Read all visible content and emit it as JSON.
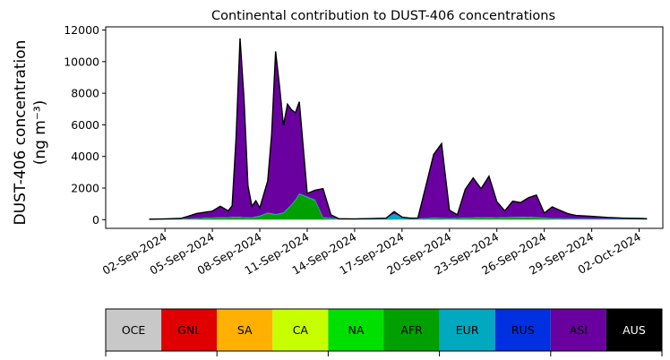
{
  "chart_data": {
    "type": "area",
    "title": "Continental contribution to DUST-406 concentrations",
    "ylabel_line1": "DUST-406 concentration",
    "ylabel_line2": "(ng m⁻³)",
    "ylim": [
      -550,
      12200
    ],
    "xlim": [
      "2024-08-29T06:00",
      "2024-10-03T12:00"
    ],
    "yticks": [
      0,
      2000,
      4000,
      6000,
      8000,
      10000,
      12000
    ],
    "xticks": [
      "2024-09-02",
      "2024-09-05",
      "2024-09-08",
      "2024-09-11",
      "2024-09-14",
      "2024-09-17",
      "2024-09-20",
      "2024-09-23",
      "2024-09-26",
      "2024-09-29",
      "2024-10-02"
    ],
    "xtick_labels": [
      "02-Sep-2024",
      "05-Sep-2024",
      "08-Sep-2024",
      "11-Sep-2024",
      "14-Sep-2024",
      "17-Sep-2024",
      "20-Sep-2024",
      "23-Sep-2024",
      "26-Sep-2024",
      "29-Sep-2024",
      "02-Oct-2024"
    ],
    "grid": false,
    "legend": {
      "placement": "bottom",
      "entries": [
        {
          "label": "OCE",
          "color": "#c8c8c8",
          "text_color": "#000000"
        },
        {
          "label": "GNL",
          "color": "#e00000",
          "text_color": "#000000"
        },
        {
          "label": "SA",
          "color": "#ffb000",
          "text_color": "#000000"
        },
        {
          "label": "CA",
          "color": "#c8ff00",
          "text_color": "#000000"
        },
        {
          "label": "NA",
          "color": "#00e000",
          "text_color": "#000000"
        },
        {
          "label": "AFR",
          "color": "#00a000",
          "text_color": "#000000"
        },
        {
          "label": "EUR",
          "color": "#00a8c0",
          "text_color": "#000000"
        },
        {
          "label": "RUS",
          "color": "#0030e0",
          "text_color": "#000000"
        },
        {
          "label": "ASI",
          "color": "#6a00a0",
          "text_color": "#000000"
        },
        {
          "label": "AUS",
          "color": "#000000",
          "text_color": "#ffffff"
        }
      ]
    },
    "series": [
      {
        "name": "AFR",
        "color": "#00a000",
        "points": [
          [
            "2024-09-01T00:00",
            10
          ],
          [
            "2024-09-02T00:00",
            20
          ],
          [
            "2024-09-03T00:00",
            30
          ],
          [
            "2024-09-04T00:00",
            60
          ],
          [
            "2024-09-05T00:00",
            100
          ],
          [
            "2024-09-06T00:00",
            120
          ],
          [
            "2024-09-06T12:00",
            150
          ],
          [
            "2024-09-07T00:00",
            120
          ],
          [
            "2024-09-07T12:00",
            100
          ],
          [
            "2024-09-08T00:00",
            200
          ],
          [
            "2024-09-08T12:00",
            400
          ],
          [
            "2024-09-09T00:00",
            300
          ],
          [
            "2024-09-09T12:00",
            400
          ],
          [
            "2024-09-10T00:00",
            900
          ],
          [
            "2024-09-10T06:00",
            1200
          ],
          [
            "2024-09-10T12:00",
            1600
          ],
          [
            "2024-09-11T00:00",
            1400
          ],
          [
            "2024-09-11T12:00",
            1200
          ],
          [
            "2024-09-12T00:00",
            100
          ],
          [
            "2024-09-13T00:00",
            20
          ],
          [
            "2024-09-14T00:00",
            10
          ],
          [
            "2024-09-15T00:00",
            10
          ],
          [
            "2024-09-16T00:00",
            20
          ],
          [
            "2024-09-17T00:00",
            10
          ],
          [
            "2024-09-18T00:00",
            30
          ],
          [
            "2024-09-19T00:00",
            80
          ],
          [
            "2024-09-20T00:00",
            60
          ],
          [
            "2024-09-21T00:00",
            80
          ],
          [
            "2024-09-22T00:00",
            120
          ],
          [
            "2024-09-23T00:00",
            100
          ],
          [
            "2024-09-24T00:00",
            130
          ],
          [
            "2024-09-25T00:00",
            150
          ],
          [
            "2024-09-26T00:00",
            80
          ],
          [
            "2024-09-27T00:00",
            50
          ],
          [
            "2024-09-28T00:00",
            30
          ],
          [
            "2024-09-29T00:00",
            20
          ],
          [
            "2024-09-30T00:00",
            20
          ],
          [
            "2024-10-01T00:00",
            10
          ],
          [
            "2024-10-02T12:00",
            10
          ]
        ]
      },
      {
        "name": "EUR",
        "color": "#00a8c0",
        "points": [
          [
            "2024-09-01T00:00",
            20
          ],
          [
            "2024-09-02T00:00",
            20
          ],
          [
            "2024-09-03T00:00",
            30
          ],
          [
            "2024-09-04T00:00",
            30
          ],
          [
            "2024-09-05T00:00",
            40
          ],
          [
            "2024-09-06T00:00",
            40
          ],
          [
            "2024-09-07T00:00",
            40
          ],
          [
            "2024-09-08T00:00",
            50
          ],
          [
            "2024-09-09T00:00",
            50
          ],
          [
            "2024-09-10T00:00",
            60
          ],
          [
            "2024-09-11T00:00",
            60
          ],
          [
            "2024-09-12T00:00",
            60
          ],
          [
            "2024-09-13T00:00",
            40
          ],
          [
            "2024-09-14T00:00",
            40
          ],
          [
            "2024-09-15T00:00",
            60
          ],
          [
            "2024-09-16T00:00",
            80
          ],
          [
            "2024-09-16T12:00",
            350
          ],
          [
            "2024-09-17T00:00",
            150
          ],
          [
            "2024-09-17T12:00",
            60
          ],
          [
            "2024-09-18T00:00",
            40
          ],
          [
            "2024-09-19T00:00",
            40
          ],
          [
            "2024-09-20T00:00",
            40
          ],
          [
            "2024-09-22T00:00",
            40
          ],
          [
            "2024-09-24T00:00",
            40
          ],
          [
            "2024-09-26T00:00",
            40
          ],
          [
            "2024-09-28T00:00",
            40
          ],
          [
            "2024-09-30T00:00",
            40
          ],
          [
            "2024-10-02T12:00",
            40
          ]
        ]
      },
      {
        "name": "ASI",
        "color": "#6a00a0",
        "points": [
          [
            "2024-09-01T00:00",
            0
          ],
          [
            "2024-09-02T00:00",
            10
          ],
          [
            "2024-09-03T00:00",
            20
          ],
          [
            "2024-09-03T12:00",
            150
          ],
          [
            "2024-09-04T00:00",
            300
          ],
          [
            "2024-09-04T12:00",
            350
          ],
          [
            "2024-09-05T00:00",
            400
          ],
          [
            "2024-09-05T12:00",
            700
          ],
          [
            "2024-09-06T00:00",
            400
          ],
          [
            "2024-09-06T06:00",
            700
          ],
          [
            "2024-09-06T12:00",
            5000
          ],
          [
            "2024-09-06T18:00",
            11300
          ],
          [
            "2024-09-07T00:00",
            7500
          ],
          [
            "2024-09-07T06:00",
            2000
          ],
          [
            "2024-09-07T12:00",
            700
          ],
          [
            "2024-09-07T18:00",
            1000
          ],
          [
            "2024-09-08T00:00",
            500
          ],
          [
            "2024-09-08T12:00",
            2000
          ],
          [
            "2024-09-08T18:00",
            5000
          ],
          [
            "2024-09-09T00:00",
            10300
          ],
          [
            "2024-09-09T06:00",
            8000
          ],
          [
            "2024-09-09T12:00",
            5500
          ],
          [
            "2024-09-09T18:00",
            6600
          ],
          [
            "2024-09-10T00:00",
            6000
          ],
          [
            "2024-09-10T06:00",
            5500
          ],
          [
            "2024-09-10T12:00",
            5800
          ],
          [
            "2024-09-11T00:00",
            200
          ],
          [
            "2024-09-11T12:00",
            600
          ],
          [
            "2024-09-12T00:00",
            1800
          ],
          [
            "2024-09-12T12:00",
            200
          ],
          [
            "2024-09-13T00:00",
            0
          ],
          [
            "2024-09-16T00:00",
            0
          ],
          [
            "2024-09-16T12:00",
            150
          ],
          [
            "2024-09-17T00:00",
            0
          ],
          [
            "2024-09-18T00:00",
            30
          ],
          [
            "2024-09-18T12:00",
            2000
          ],
          [
            "2024-09-19T00:00",
            4000
          ],
          [
            "2024-09-19T12:00",
            4700
          ],
          [
            "2024-09-20T00:00",
            500
          ],
          [
            "2024-09-20T12:00",
            200
          ],
          [
            "2024-09-21T00:00",
            1800
          ],
          [
            "2024-09-21T12:00",
            2500
          ],
          [
            "2024-09-22T00:00",
            1800
          ],
          [
            "2024-09-22T12:00",
            2600
          ],
          [
            "2024-09-23T00:00",
            1000
          ],
          [
            "2024-09-23T12:00",
            400
          ],
          [
            "2024-09-24T00:00",
            1000
          ],
          [
            "2024-09-24T12:00",
            900
          ],
          [
            "2024-09-25T00:00",
            1200
          ],
          [
            "2024-09-25T12:00",
            1400
          ],
          [
            "2024-09-26T00:00",
            300
          ],
          [
            "2024-09-26T12:00",
            700
          ],
          [
            "2024-09-27T00:00",
            500
          ],
          [
            "2024-09-27T12:00",
            300
          ],
          [
            "2024-09-28T00:00",
            200
          ],
          [
            "2024-09-29T00:00",
            150
          ],
          [
            "2024-09-30T00:00",
            80
          ],
          [
            "2024-10-01T00:00",
            50
          ],
          [
            "2024-10-02T00:00",
            30
          ],
          [
            "2024-10-02T12:00",
            10
          ]
        ]
      }
    ]
  }
}
